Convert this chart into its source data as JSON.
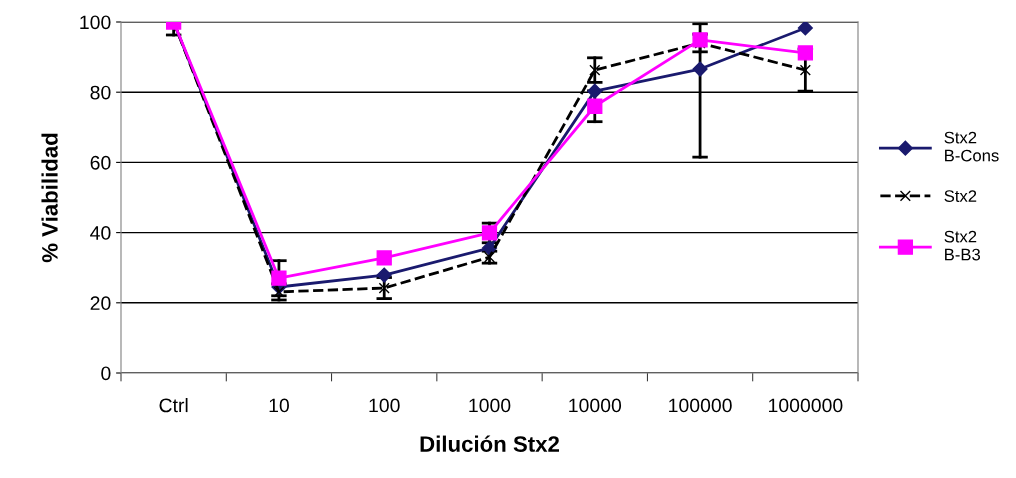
{
  "chart_data": {
    "type": "line",
    "xlabel": "Dilución Stx2",
    "ylabel": "% Viabilidad",
    "categories": [
      "Ctrl",
      "10",
      "100",
      "1000",
      "10000",
      "100000",
      "1000000"
    ],
    "ylim": [
      0,
      100
    ],
    "yticks": [
      0,
      20,
      40,
      60,
      80,
      100
    ],
    "grid": "y",
    "legend": "right",
    "series": [
      {
        "name": "Stx2 B-Cons",
        "color": "#1a1a6e",
        "marker": "diamond",
        "line_style": "solid",
        "values": [
          100,
          24.5,
          27.9,
          35.6,
          80.3,
          86.6,
          98.3
        ],
        "errors": [
          null,
          null,
          null,
          null,
          null,
          [
            61.5,
            99.5
          ],
          null
        ]
      },
      {
        "name": "Stx2",
        "color": "#000000",
        "marker": "cross",
        "line_style": "dashed",
        "values": [
          100,
          23.1,
          24.2,
          33,
          86.3,
          94,
          86.3
        ],
        "errors": [
          3.7,
          2.3,
          3,
          1.7,
          3.5,
          2.5,
          6
        ]
      },
      {
        "name": "Stx2 B-B3",
        "color": "#ff00ff",
        "marker": "square",
        "line_style": "solid",
        "values": [
          100,
          27,
          32.8,
          39.9,
          76,
          94.9,
          91.2
        ],
        "errors": [
          null,
          5,
          null,
          2.8,
          4.4,
          null,
          null
        ]
      }
    ]
  }
}
